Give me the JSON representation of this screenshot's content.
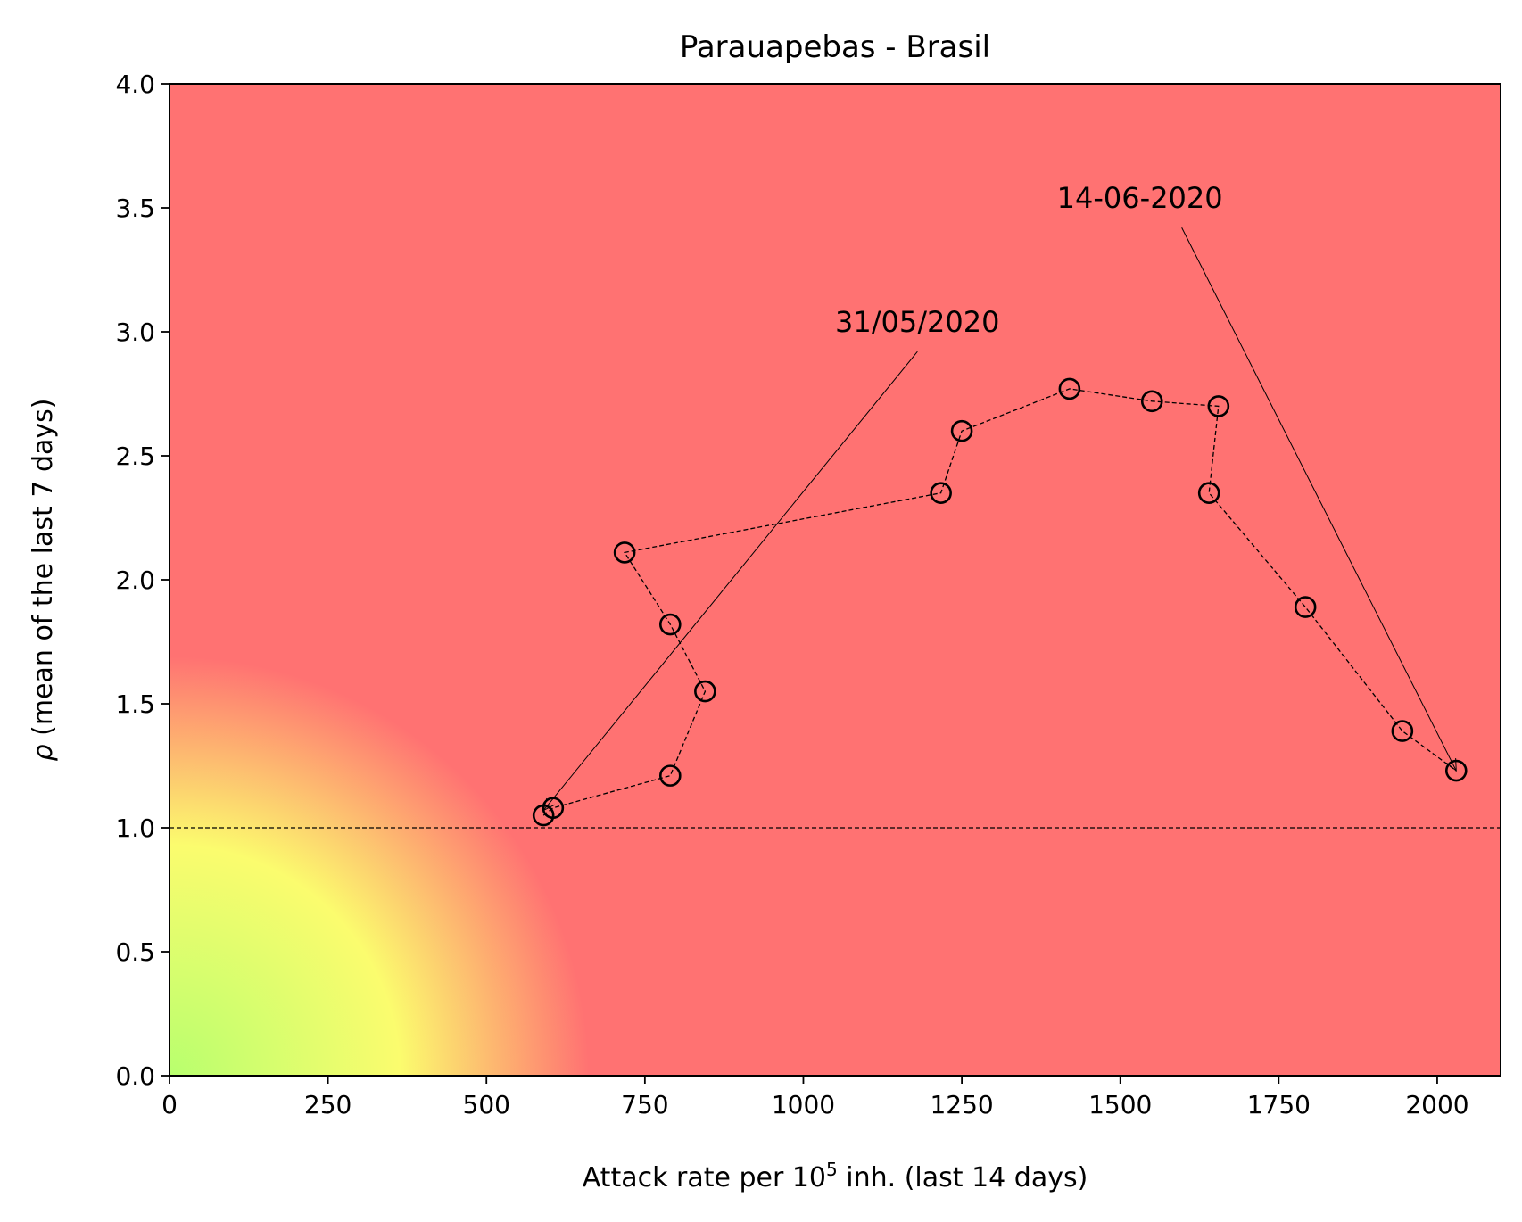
{
  "chart_data": {
    "type": "scatter",
    "title": "Parauapebas - Brasil",
    "xlabel_prefix": "Attack rate per 10",
    "xlabel_sup": "5",
    "xlabel_suffix": " inh. (last 14 days)",
    "ylabel_symbol": "ρ",
    "ylabel_text": " (mean of the last 7 days)",
    "xlim": [
      0,
      2100
    ],
    "ylim": [
      0,
      4
    ],
    "x_ticks": [
      0,
      250,
      500,
      750,
      1000,
      1250,
      1500,
      1750,
      2000
    ],
    "x_tick_labels": [
      "0",
      "250",
      "500",
      "750",
      "1000",
      "1250",
      "1500",
      "1750",
      "2000"
    ],
    "y_ticks": [
      0,
      0.5,
      1,
      1.5,
      2,
      2.5,
      3,
      3.5,
      4
    ],
    "y_tick_labels": [
      "0.0",
      "0.5",
      "1.0",
      "1.5",
      "2.0",
      "2.5",
      "3.0",
      "3.5",
      "4.0"
    ],
    "reference_line_y": 1.0,
    "background_colors": {
      "low": "#b8ff6e",
      "mid": "#fbfc6e",
      "high": "#ff7272"
    },
    "series": [
      {
        "x": [
          590,
          605,
          790,
          845,
          790,
          718,
          1217,
          1250,
          1420,
          1550,
          1655,
          1640,
          1792,
          1945,
          2030
        ],
        "y": [
          1.05,
          1.08,
          1.21,
          1.55,
          1.82,
          2.11,
          2.35,
          2.6,
          2.77,
          2.72,
          2.7,
          2.35,
          1.89,
          1.39,
          1.23
        ]
      }
    ],
    "annotations": [
      {
        "text": "31/05/2020",
        "text_x": 1050,
        "text_y": 3.0,
        "arrow_from_x": 1180,
        "arrow_from_y": 2.92,
        "target_x": 590,
        "target_y": 1.07
      },
      {
        "text": "14-06-2020",
        "text_x": 1400,
        "text_y": 3.5,
        "arrow_from_x": 1597,
        "arrow_from_y": 3.42,
        "target_x": 2030,
        "target_y": 1.23
      }
    ]
  }
}
